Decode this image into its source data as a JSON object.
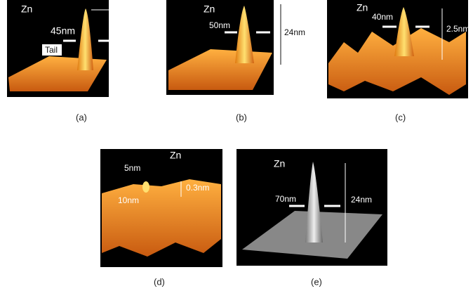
{
  "panels": [
    {
      "label": "(a)",
      "annotations": [
        "Zn",
        "45nm",
        "Tail"
      ]
    },
    {
      "label": "(b)",
      "annotations": [
        "Zn",
        "50nm",
        "24nm"
      ]
    },
    {
      "label": "(c)",
      "annotations": [
        "Zn",
        "40nm",
        "2.5nm"
      ]
    },
    {
      "label": "(d)",
      "annotations": [
        "Zn",
        "5nm",
        "10nm",
        "0.3nm"
      ]
    },
    {
      "label": "(e)",
      "annotations": [
        "Zn",
        "70nm",
        "24nm"
      ]
    }
  ]
}
